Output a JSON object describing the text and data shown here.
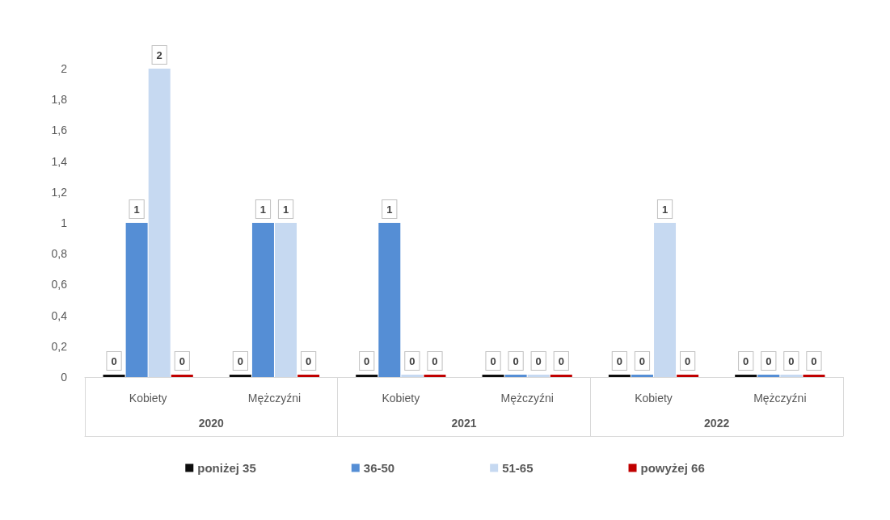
{
  "chart_data": {
    "type": "bar",
    "categories": [
      "Kobiety",
      "Mężczyźni",
      "Kobiety",
      "Mężczyźni",
      "Kobiety",
      "Mężczyźni"
    ],
    "annotations": [
      "2020",
      "2021",
      "2022"
    ],
    "series": [
      {
        "name": "poniżej 35",
        "color": "#0d0d0d",
        "values": [
          0,
          0,
          0,
          0,
          0,
          0
        ]
      },
      {
        "name": "36-50",
        "color": "#558ed5",
        "values": [
          1,
          1,
          1,
          0,
          0,
          0
        ]
      },
      {
        "name": "51-65",
        "color": "#c6d9f1",
        "values": [
          2,
          1,
          0,
          0,
          1,
          0
        ]
      },
      {
        "name": "powyżej 66",
        "color": "#c00000",
        "values": [
          0,
          0,
          0,
          0,
          0,
          0
        ]
      }
    ],
    "ylim": [
      0,
      2
    ],
    "yticks": [
      0,
      {
        "value": 0.2,
        "label": "0,2"
      },
      {
        "value": 0.4,
        "label": "0,4"
      },
      {
        "value": 0.6,
        "label": "0,6"
      },
      {
        "value": 0.8,
        "label": "0,8"
      },
      1,
      {
        "value": 1.2,
        "label": "1,2"
      },
      {
        "value": 1.4,
        "label": "1,4"
      },
      {
        "value": 1.6,
        "label": "1,6"
      },
      {
        "value": 1.8,
        "label": "1,8"
      },
      2
    ],
    "data_labels": true,
    "grid": false,
    "legend": "bottom"
  }
}
